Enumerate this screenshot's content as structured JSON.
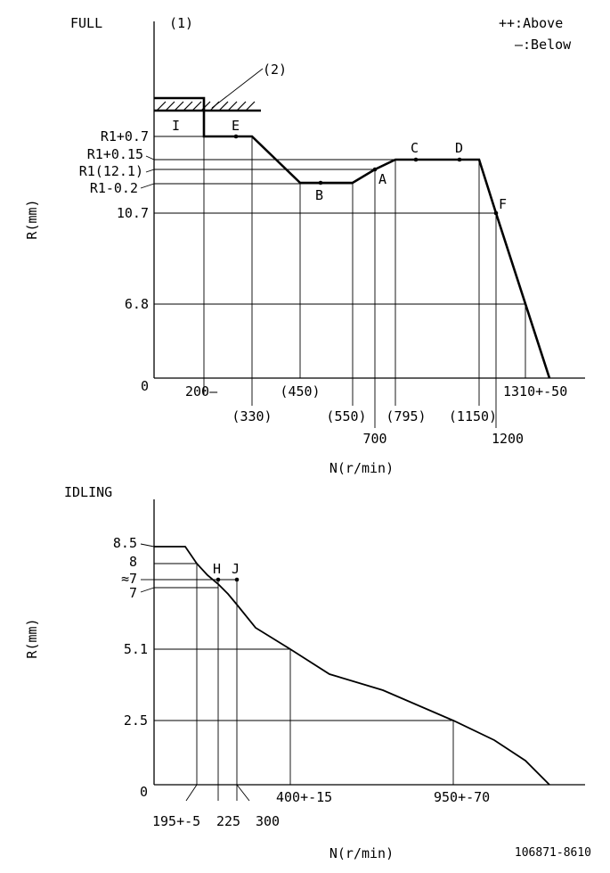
{
  "full": {
    "title": "FULL",
    "marker1": "(1)",
    "marker2": "(2)",
    "legend": {
      "above": "++:Above",
      "below": "—:Below"
    },
    "y_axis_label": "R(mm)",
    "x_axis_label": "N(r/min)",
    "y_ticks": [
      "R1+0.7",
      "R1+0.15",
      "R1(12.1)",
      "R1-0.2",
      "10.7",
      "6.8",
      "0"
    ],
    "x_ticks": [
      "200—",
      "(330)",
      "(450)",
      "(550)",
      "700",
      "(795)",
      "(1150)",
      "1200",
      "1310+-50"
    ],
    "points": [
      "I",
      "E",
      "B",
      "A",
      "C",
      "D",
      "F"
    ]
  },
  "idling": {
    "title": "IDLING",
    "y_axis_label": "R(mm)",
    "x_axis_label": "N(r/min)",
    "y_ticks": [
      "8.5",
      "8",
      "≈7",
      "7",
      "5.1",
      "2.5",
      "0"
    ],
    "x_ticks": [
      "195+-5",
      "225",
      "300",
      "400+-15",
      "950+-70"
    ],
    "points": [
      "H",
      "J"
    ]
  },
  "doc_id": "106871-8610"
}
